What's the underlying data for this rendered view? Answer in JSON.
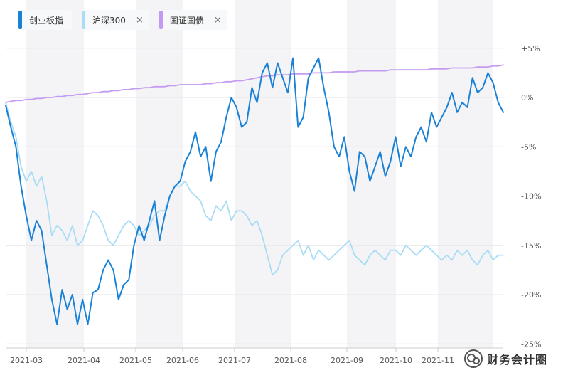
{
  "legend": [
    {
      "label": "创业板指",
      "color": "#1a82d6",
      "closable": false
    },
    {
      "label": "沪深300",
      "color": "#a9dcf5",
      "closable": true
    },
    {
      "label": "国证国债",
      "color": "#c49bf0",
      "closable": true
    }
  ],
  "legend_close_glyph": "×",
  "watermark": {
    "text": "财务会计圈",
    "icon": "wechat-icon"
  },
  "chart_data": {
    "type": "line",
    "x_ticks": [
      "2021-03",
      "2021-04",
      "2021-05",
      "2021-06",
      "2021-07",
      "2021-08",
      "2021-09",
      "2021-10",
      "2021-11"
    ],
    "y_ticks": [
      "+5%",
      "0%",
      "-5%",
      "-10%",
      "-15%",
      "-20%",
      "-25%"
    ],
    "y_tick_values": [
      5,
      0,
      -5,
      -10,
      -15,
      -20,
      -25
    ],
    "ylim": [
      -25,
      7.5
    ],
    "grid": "horizontal",
    "legend_position": "top-left",
    "series": [
      {
        "name": "创业板指",
        "color": "#1a82d6",
        "values": [
          -0.8,
          -3,
          -5,
          -9,
          -12,
          -14.5,
          -12.5,
          -13.5,
          -17,
          -20.5,
          -23,
          -19.5,
          -21.5,
          -20,
          -23,
          -20.5,
          -23,
          -19.8,
          -19.5,
          -17.5,
          -16.5,
          -17.5,
          -20.5,
          -19,
          -18.5,
          -15,
          -13,
          -14.5,
          -12.5,
          -10.5,
          -14.5,
          -12,
          -10,
          -9,
          -8.5,
          -6.5,
          -5.5,
          -3.5,
          -6,
          -5,
          -8.5,
          -5.5,
          -4.5,
          -2,
          0,
          -1,
          -3,
          -2.5,
          1,
          -0.5,
          2.5,
          3.5,
          1,
          3.5,
          2,
          0.5,
          4,
          -3,
          -2,
          2,
          3,
          4,
          1,
          -1.5,
          -5,
          -6,
          -4,
          -7.5,
          -9.5,
          -5.5,
          -6,
          -8.5,
          -7,
          -5.5,
          -8,
          -6.5,
          -4,
          -7,
          -5,
          -6,
          -4,
          -3,
          -4.5,
          -1.5,
          -3,
          -2,
          -1,
          0.5,
          -1.5,
          -0.5,
          -1,
          2,
          0.5,
          1,
          2.5,
          1.5,
          -0.5,
          -1.5
        ]
      },
      {
        "name": "沪深300",
        "color": "#a9dcf5",
        "values": [
          -0.5,
          -2.5,
          -4,
          -7,
          -8.5,
          -7.5,
          -9,
          -8,
          -10.5,
          -14,
          -13,
          -13.5,
          -14.5,
          -13,
          -15,
          -14.5,
          -13,
          -11.5,
          -12,
          -13,
          -14.5,
          -15,
          -14,
          -13,
          -12.5,
          -13,
          -14,
          -13.5,
          -13,
          -12,
          -11.5,
          -11.5,
          -10,
          -9,
          -9,
          -8.5,
          -9.5,
          -10,
          -10.5,
          -12,
          -12.5,
          -11,
          -11.5,
          -10.5,
          -12.5,
          -11.5,
          -11.5,
          -12,
          -13,
          -12.5,
          -14,
          -16,
          -18,
          -17.5,
          -16,
          -15.5,
          -15,
          -14.5,
          -16,
          -15,
          -16.5,
          -15.5,
          -16,
          -16.5,
          -16,
          -15.5,
          -15,
          -14.5,
          -16,
          -16.5,
          -17,
          -16,
          -15.5,
          -16,
          -16.5,
          -15.5,
          -15.5,
          -16,
          -15,
          -15.5,
          -16,
          -15.5,
          -15,
          -15.5,
          -16,
          -16.5,
          -16,
          -16.5,
          -15.5,
          -16,
          -15.5,
          -16.5,
          -17,
          -16,
          -15.5,
          -16.5,
          -16,
          -16
        ]
      },
      {
        "name": "国证国债",
        "color": "#c49bf0",
        "values": [
          -0.5,
          -0.4,
          -0.3,
          -0.3,
          -0.2,
          -0.2,
          -0.1,
          -0.1,
          0,
          0,
          0.1,
          0.1,
          0.2,
          0.2,
          0.3,
          0.3,
          0.4,
          0.5,
          0.5,
          0.6,
          0.6,
          0.7,
          0.7,
          0.8,
          0.8,
          0.9,
          0.9,
          1,
          1,
          1.1,
          1.1,
          1.1,
          1.2,
          1.2,
          1.3,
          1.3,
          1.3,
          1.3,
          1.3,
          1.4,
          1.4,
          1.5,
          1.5,
          1.6,
          1.6,
          1.7,
          1.7,
          1.8,
          1.9,
          2,
          2.1,
          2.2,
          2.2,
          2.3,
          2.3,
          2.3,
          2.4,
          2.4,
          2.4,
          2.4,
          2.5,
          2.5,
          2.5,
          2.5,
          2.6,
          2.6,
          2.6,
          2.6,
          2.6,
          2.7,
          2.7,
          2.7,
          2.7,
          2.7,
          2.7,
          2.8,
          2.8,
          2.8,
          2.8,
          2.8,
          2.8,
          2.8,
          2.8,
          2.9,
          2.9,
          2.9,
          2.9,
          3,
          3,
          3,
          3,
          3,
          3.1,
          3.1,
          3.1,
          3.2,
          3.2,
          3.3
        ]
      }
    ]
  }
}
